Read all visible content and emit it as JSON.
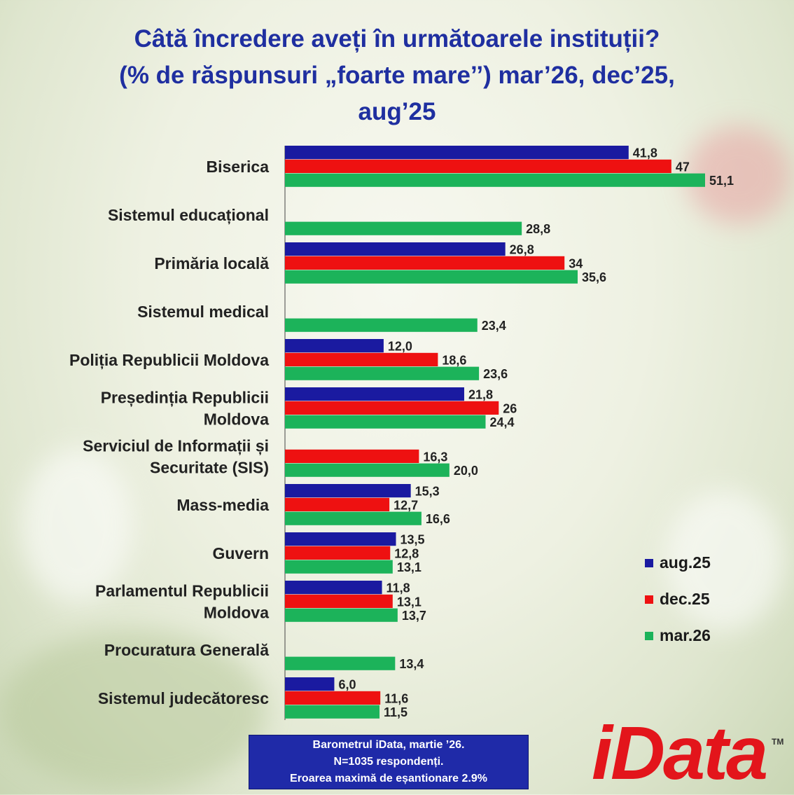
{
  "header": {
    "title_lines": [
      "Câtă încredere aveți în următoarele instituții?",
      "(% de răspunsuri „foarte mare’’) mar’26, dec’25,",
      "aug’25"
    ]
  },
  "colors": {
    "aug": "#1a1aa0",
    "dec": "#ee1111",
    "mar": "#1cb35a"
  },
  "chart_data": {
    "type": "bar",
    "orientation": "horizontal",
    "title": "Câtă încredere aveți în următoarele instituții? (% de răspunsuri „foarte mare’’) mar’26, dec’25, aug’25",
    "categories": [
      "Biserica",
      "Sistemul educațional",
      "Primăria locală",
      "Sistemul medical",
      "Poliția Republicii Moldova",
      "Președinția Republicii Moldova",
      "Serviciul de Informații și Securitate (SIS)",
      "Mass-media",
      "Guvern",
      "Parlamentul Republicii Moldova",
      "Procuratura Generală",
      "Sistemul judecătoresc"
    ],
    "category_label_lines": [
      [
        "Biserica"
      ],
      [
        "Sistemul educațional"
      ],
      [
        "Primăria locală"
      ],
      [
        "Sistemul medical"
      ],
      [
        "Poliția Republicii Moldova"
      ],
      [
        "Președinția Republicii",
        "Moldova"
      ],
      [
        "Serviciul de Informații și",
        "Securitate (SIS)"
      ],
      [
        "Mass-media"
      ],
      [
        "Guvern"
      ],
      [
        "Parlamentul Republicii",
        "Moldova"
      ],
      [
        "Procuratura Generală"
      ],
      [
        "Sistemul judecătoresc"
      ]
    ],
    "series": [
      {
        "name": "aug.25",
        "values": [
          41.8,
          null,
          26.8,
          null,
          12.0,
          21.8,
          null,
          15.3,
          13.5,
          11.8,
          null,
          6.0
        ],
        "labels": [
          "41,8",
          "",
          "26,8",
          "",
          "12,0",
          "21,8",
          "",
          "15,3",
          "13,5",
          "11,8",
          "",
          "6,0"
        ]
      },
      {
        "name": "dec.25",
        "values": [
          47,
          null,
          34,
          null,
          18.6,
          26,
          16.3,
          12.7,
          12.8,
          13.1,
          null,
          11.6
        ],
        "labels": [
          "47",
          "",
          "34",
          "",
          "18,6",
          "26",
          "16,3",
          "12,7",
          "12,8",
          "13,1",
          "",
          "11,6"
        ]
      },
      {
        "name": "mar.26",
        "values": [
          51.1,
          28.8,
          35.6,
          23.4,
          23.6,
          24.4,
          20.0,
          16.6,
          13.1,
          13.7,
          13.4,
          11.5
        ],
        "labels": [
          "51,1",
          "28,8",
          "35,6",
          "23,4",
          "23,6",
          "24,4",
          "20,0",
          "16,6",
          "13,1",
          "13,7",
          "13,4",
          "11,5"
        ]
      }
    ],
    "xlim": [
      0,
      51.1
    ],
    "grid": false,
    "legend": {
      "position": "right",
      "entries": [
        "aug.25",
        "dec.25",
        "mar.26"
      ]
    }
  },
  "footer": {
    "source_lines": [
      "Barometrul iData, martie ’26.",
      "N=1035 respondenți.",
      "Eroarea maximă de eșantionare 2.9%"
    ],
    "logo_text": "iData",
    "logo_mark": "TM"
  }
}
